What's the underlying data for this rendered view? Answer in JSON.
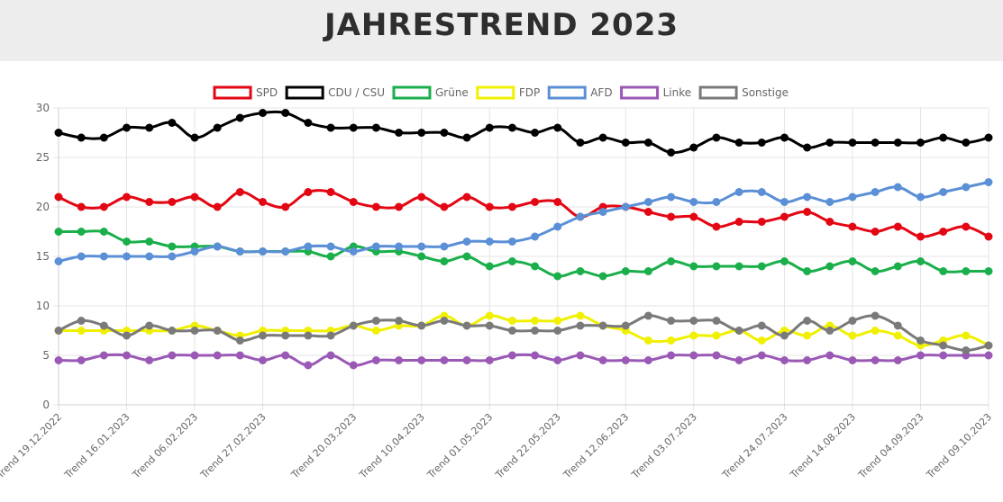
{
  "header": {
    "title": "JAHRESTREND 2023"
  },
  "chart_data": {
    "type": "line",
    "title": "JAHRESTREND 2023",
    "xlabel": "",
    "ylabel": "",
    "ylim": [
      0,
      30
    ],
    "yticks": [
      0,
      5,
      10,
      15,
      20,
      25,
      30
    ],
    "grid": true,
    "legend_position": "top",
    "x_tick_labels": [
      "Trend 19.12.2022",
      "Trend 16.01.2023",
      "Trend 06.02.2023",
      "Trend 27.02.2023",
      "Trend 20.03.2023",
      "Trend 10.04.2023",
      "Trend 01.05.2023",
      "Trend 22.05.2023",
      "Trend 12.06.2023",
      "Trend 03.07.2023",
      "Trend 24.07.2023",
      "Trend 14.08.2023",
      "Trend 04.09.2023",
      "Trend 09.10.2023"
    ],
    "series": [
      {
        "name": "SPD",
        "color": "#e30613",
        "values": [
          21,
          20,
          20,
          21,
          20.5,
          20.5,
          21,
          20,
          21.5,
          20.5,
          20,
          21.5,
          21.5,
          20.5,
          20,
          20,
          21,
          20,
          21,
          20,
          20,
          20.5,
          20.5,
          19,
          20,
          20,
          19.5,
          19,
          19,
          18,
          18.5,
          18.5,
          19,
          19.5,
          18.5,
          18,
          17.5,
          18,
          17,
          17.5,
          18,
          17
        ]
      },
      {
        "name": "CDU / CSU",
        "color": "#000000",
        "values": [
          27.5,
          27,
          27,
          28,
          28,
          28.5,
          27,
          28,
          29,
          29.5,
          29.5,
          28.5,
          28,
          28,
          28,
          27.5,
          27.5,
          27.5,
          27,
          28,
          28,
          27.5,
          28,
          26.5,
          27,
          26.5,
          26.5,
          25.5,
          26,
          27,
          26.5,
          26.5,
          27,
          26,
          26.5,
          26.5,
          26.5,
          26.5,
          26.5,
          27,
          26.5,
          27
        ]
      },
      {
        "name": "Grüne",
        "color": "#1aaf4b",
        "values": [
          17.5,
          17.5,
          17.5,
          16.5,
          16.5,
          16,
          16,
          16,
          15.5,
          15.5,
          15.5,
          15.5,
          15,
          16,
          15.5,
          15.5,
          15,
          14.5,
          15,
          14,
          14.5,
          14,
          13,
          13.5,
          13,
          13.5,
          13.5,
          14.5,
          14,
          14,
          14,
          14,
          14.5,
          13.5,
          14,
          14.5,
          13.5,
          14,
          14.5,
          13.5,
          13.5,
          13.5
        ]
      },
      {
        "name": "FDP",
        "color": "#f0f000",
        "values": [
          7.5,
          7.5,
          7.5,
          7.5,
          7.5,
          7.5,
          8,
          7.5,
          7,
          7.5,
          7.5,
          7.5,
          7.5,
          8,
          7.5,
          8,
          8,
          9,
          8,
          9,
          8.5,
          8.5,
          8.5,
          9,
          8,
          7.5,
          6.5,
          6.5,
          7,
          7,
          7.5,
          6.5,
          7.5,
          7,
          8,
          7,
          7.5,
          7,
          6,
          6.5,
          7,
          6
        ]
      },
      {
        "name": "AFD",
        "color": "#5b8fd6",
        "values": [
          14.5,
          15,
          15,
          15,
          15,
          15,
          15.5,
          16,
          15.5,
          15.5,
          15.5,
          16,
          16,
          15.5,
          16,
          16,
          16,
          16,
          16.5,
          16.5,
          16.5,
          17,
          18,
          19,
          19.5,
          20,
          20.5,
          21,
          20.5,
          20.5,
          21.5,
          21.5,
          20.5,
          21,
          20.5,
          21,
          21.5,
          22,
          21,
          21.5,
          22,
          22.5
        ]
      },
      {
        "name": "Linke",
        "color": "#9b59b6",
        "values": [
          4.5,
          4.5,
          5,
          5,
          4.5,
          5,
          5,
          5,
          5,
          4.5,
          5,
          4,
          5,
          4,
          4.5,
          4.5,
          4.5,
          4.5,
          4.5,
          4.5,
          5,
          5,
          4.5,
          5,
          4.5,
          4.5,
          4.5,
          5,
          5,
          5,
          4.5,
          5,
          4.5,
          4.5,
          5,
          4.5,
          4.5,
          4.5,
          5,
          5,
          5,
          5
        ]
      },
      {
        "name": "Sonstige",
        "color": "#7a7a7a",
        "values": [
          7.5,
          8.5,
          8,
          7,
          8,
          7.5,
          7.5,
          7.5,
          6.5,
          7,
          7,
          7,
          7,
          8,
          8.5,
          8.5,
          8,
          8.5,
          8,
          8,
          7.5,
          7.5,
          7.5,
          8,
          8,
          8,
          9,
          8.5,
          8.5,
          8.5,
          7.5,
          8,
          7,
          8.5,
          7.5,
          8.5,
          9,
          8,
          6.5,
          6,
          5.5,
          6
        ]
      }
    ]
  }
}
